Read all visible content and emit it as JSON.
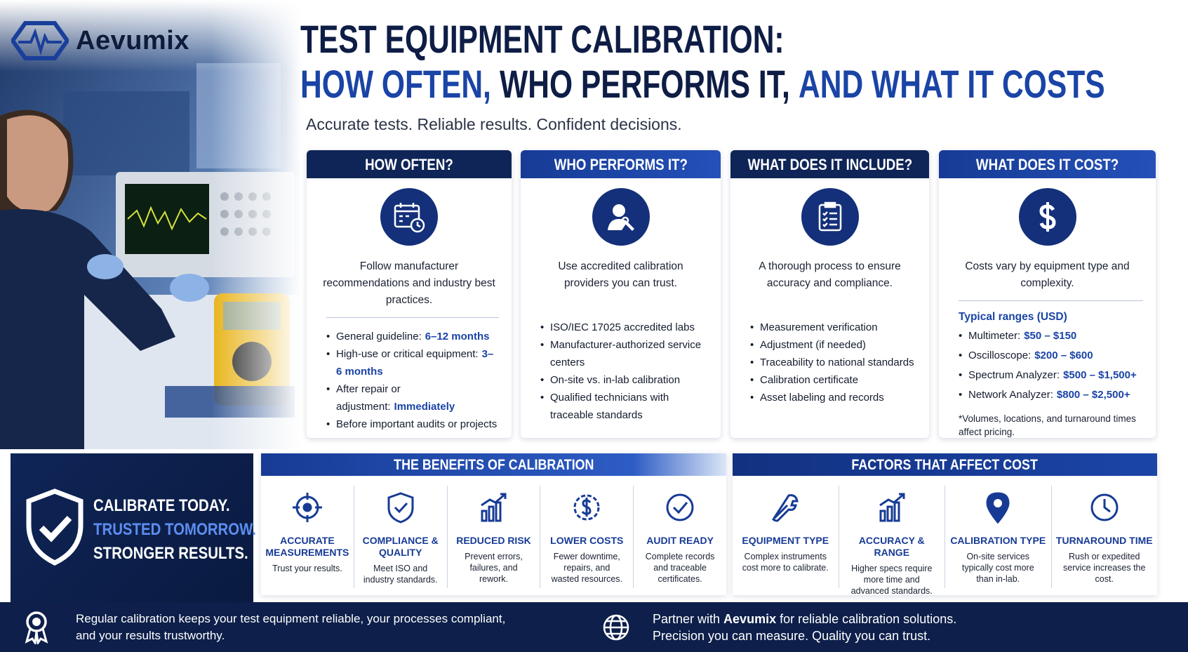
{
  "brand": "Aevumix",
  "header": {
    "title_line1": "TEST EQUIPMENT CALIBRATION:",
    "title_line2": [
      "HOW OFTEN,",
      "WHO PERFORMS IT,",
      "AND WHAT IT COSTS"
    ],
    "subtitle": "Accurate tests. Reliable results. Confident decisions."
  },
  "cards": [
    {
      "title": "HOW OFTEN?",
      "description": "Follow manufacturer recommendations and industry best practices.",
      "items": [
        {
          "text": "General guideline:",
          "highlight": "6–12 months"
        },
        {
          "text": "High-use or critical equipment:",
          "highlight": "3–6 months"
        },
        {
          "text": "After repair or adjustment:",
          "highlight": "Immediately"
        },
        {
          "text": "Before important audits or projects"
        }
      ]
    },
    {
      "title": "WHO PERFORMS IT?",
      "description": "Use accredited calibration providers you can trust.",
      "items": [
        {
          "text": "ISO/IEC 17025 accredited labs"
        },
        {
          "text": "Manufacturer-authorized service centers"
        },
        {
          "text": "On-site vs. in-lab calibration"
        },
        {
          "text": "Qualified technicians with traceable standards"
        }
      ]
    },
    {
      "title": "WHAT DOES IT INCLUDE?",
      "description": "A thorough process to ensure accuracy and compliance.",
      "items": [
        {
          "text": "Measurement verification"
        },
        {
          "text": "Adjustment (if needed)"
        },
        {
          "text": "Traceability to national standards"
        },
        {
          "text": "Calibration certificate"
        },
        {
          "text": "Asset labeling and records"
        }
      ]
    },
    {
      "title": "WHAT DOES IT COST?",
      "description": "Costs vary by equipment type and complexity.",
      "ranges_title": "Typical ranges (USD)",
      "items": [
        {
          "text": "Multimeter:",
          "highlight": "$50 – $150"
        },
        {
          "text": "Oscilloscope:",
          "highlight": "$200 – $600"
        },
        {
          "text": "Spectrum Analyzer:",
          "highlight": "$500 – $1,500+"
        },
        {
          "text": "Network Analyzer:",
          "highlight": "$800 – $2,500+"
        }
      ],
      "note": "*Volumes, locations, and turnaround times affect pricing."
    }
  ],
  "callout": [
    "CALIBRATE TODAY.",
    "TRUSTED TOMORROW.",
    "STRONGER RESULTS."
  ],
  "benefits": {
    "title": "THE BENEFITS OF CALIBRATION",
    "items": [
      {
        "label": "ACCURATE MEASUREMENTS",
        "description": "Trust your results."
      },
      {
        "label": "COMPLIANCE & QUALITY",
        "description": "Meet ISO and industry standards."
      },
      {
        "label": "REDUCED RISK",
        "description": "Prevent errors, failures, and rework."
      },
      {
        "label": "LOWER COSTS",
        "description": "Fewer downtime, repairs, and wasted resources."
      },
      {
        "label": "AUDIT READY",
        "description": "Complete records and traceable certificates."
      }
    ]
  },
  "factors": {
    "title": "FACTORS THAT AFFECT COST",
    "items": [
      {
        "label": "EQUIPMENT TYPE",
        "description": "Complex instruments cost more to calibrate."
      },
      {
        "label": "ACCURACY & RANGE",
        "description": "Higher specs require more time and advanced standards."
      },
      {
        "label": "CALIBRATION TYPE",
        "description": "On-site services typically cost more than in-lab."
      },
      {
        "label": "TURNAROUND TIME",
        "description": "Rush or expedited service increases the cost."
      }
    ]
  },
  "footer": {
    "left_lines": [
      "Regular calibration keeps your test equipment reliable, your processes compliant,",
      "and your results trustworthy."
    ],
    "right_line1": [
      "Partner with",
      "Aevumix",
      "for reliable calibration solutions."
    ],
    "right_line2": "Precision you can measure. Quality you can trust."
  }
}
